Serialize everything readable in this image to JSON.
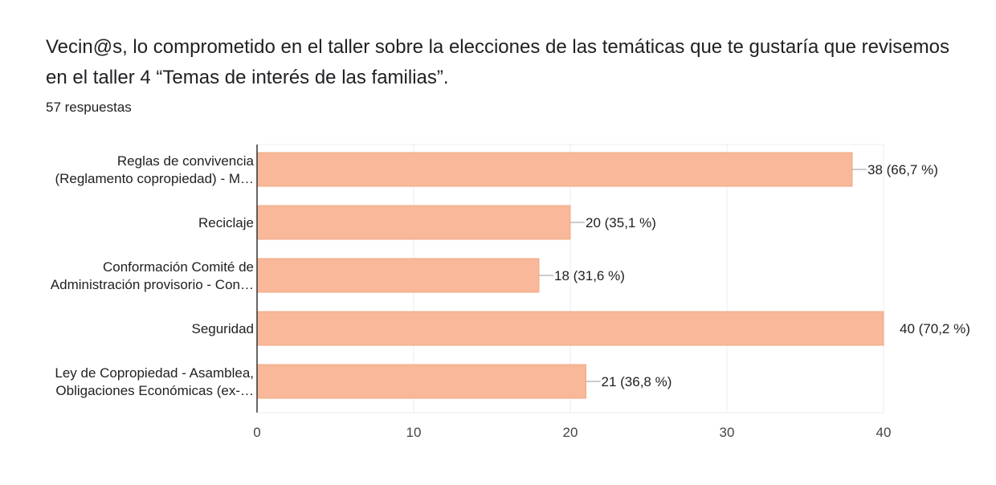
{
  "header": {
    "question": "Vecin@s, lo comprometido en el taller sobre la elecciones de las temáticas que te gustaría que revisemos en el taller 4 “Temas de interés de las familias”.",
    "responses": "57 respuestas"
  },
  "colors": {
    "bar": "#f8b899",
    "bar_border": "#f0a884",
    "grid": "#ececec",
    "axis": "#333333",
    "leader": "#999999"
  },
  "chart_data": {
    "type": "bar",
    "orientation": "horizontal",
    "categories": [
      [
        "Reglas de convivencia",
        "(Reglamento copropiedad) - M…"
      ],
      [
        "Reciclaje"
      ],
      [
        "Conformación Comité de",
        "Administración provisorio - Con…"
      ],
      [
        "Seguridad"
      ],
      [
        "Ley de Copropiedad - Asamblea,",
        "Obligaciones Económicas (ex-…"
      ]
    ],
    "values": [
      38,
      20,
      18,
      40,
      21
    ],
    "data_labels": [
      "38 (66,7 %)",
      "20 (35,1 %)",
      "18 (31,6 %)",
      "40 (70,2 %)",
      "21 (36,8 %)"
    ],
    "xlim": [
      0,
      40
    ],
    "xticks": [
      0,
      10,
      20,
      30,
      40
    ],
    "grid": true
  }
}
